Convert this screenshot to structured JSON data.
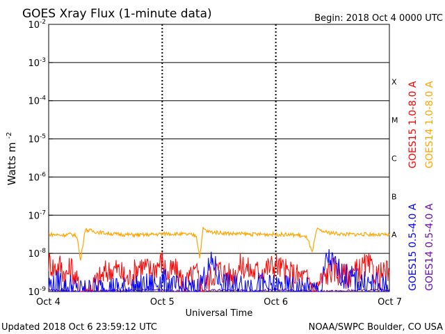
{
  "header": {
    "title": "GOES Xray Flux (1-minute data)",
    "begin_label": "Begin:  2018 Oct 4 0000 UTC"
  },
  "footer": {
    "updated": "Updated 2018 Oct  6 23:59:12 UTC",
    "source": "NOAA/SWPC Boulder, CO USA"
  },
  "chart_data": {
    "type": "line",
    "xlabel": "Universal Time",
    "ylabel_main": "Watts m",
    "ylabel_exp": "-2",
    "x_ticks": [
      "Oct 4",
      "Oct 5",
      "Oct 6",
      "Oct 7"
    ],
    "y_scale": "log",
    "ylim_exponents": [
      -9,
      -2
    ],
    "y_tick_exponents": [
      "-2",
      "-3",
      "-4",
      "-5",
      "-6",
      "-7",
      "-8",
      "-9"
    ],
    "y_tick_base": "10",
    "flare_classes": [
      {
        "label": "X",
        "exponent": -4
      },
      {
        "label": "M",
        "exponent": -5
      },
      {
        "label": "C",
        "exponent": -6
      },
      {
        "label": "B",
        "exponent": -7
      },
      {
        "label": "A",
        "exponent": -8
      }
    ],
    "legend": [
      {
        "name": "GOES15 1.0-8.0 A",
        "color": "#ff0000"
      },
      {
        "name": "GOES14 1.0-8.0 A",
        "color": "#ffa500"
      },
      {
        "name": "GOES15 0.5-4.0 A",
        "color": "#0000ff"
      },
      {
        "name": "GOES14 0.5-4.0 A",
        "color": "#6a0dad"
      }
    ],
    "series": [
      {
        "name": "GOES14 1.0-8.0 A",
        "color": "#ffa500",
        "x_days": [
          0.0,
          0.1,
          0.2,
          0.25,
          0.28,
          0.32,
          0.45,
          0.6,
          0.8,
          0.95,
          1.05,
          1.2,
          1.3,
          1.33,
          1.36,
          1.4,
          1.6,
          1.8,
          2.0,
          2.2,
          2.28,
          2.32,
          2.36,
          2.45,
          2.6,
          2.8,
          3.0
        ],
        "log_values": [
          -7.5,
          -7.52,
          -7.5,
          -7.55,
          -8.2,
          -7.38,
          -7.45,
          -7.5,
          -7.52,
          -7.5,
          -7.48,
          -7.5,
          -7.53,
          -8.1,
          -7.35,
          -7.43,
          -7.48,
          -7.5,
          -7.5,
          -7.52,
          -7.6,
          -8.0,
          -7.38,
          -7.45,
          -7.5,
          -7.5,
          -7.52
        ]
      },
      {
        "name": "GOES15 1.0-8.0 A",
        "color": "#ff0000",
        "x_days": [
          0.0,
          0.05,
          0.1,
          0.15,
          0.2,
          0.24,
          0.28,
          0.34,
          0.4,
          0.5,
          0.6,
          0.7,
          0.8,
          0.9,
          1.0,
          1.05,
          1.1,
          1.2,
          1.3,
          1.36,
          1.4,
          1.5,
          1.6,
          1.7,
          1.8,
          1.9,
          2.0,
          2.1,
          2.2,
          2.3,
          2.34,
          2.4,
          2.5,
          2.6,
          2.7,
          2.8,
          2.9,
          3.0
        ],
        "log_values": [
          -8.2,
          -8.4,
          -8.3,
          -8.6,
          -8.35,
          -8.7,
          -9.0,
          -9.0,
          -8.8,
          -8.5,
          -8.4,
          -8.7,
          -8.3,
          -8.45,
          -8.2,
          -8.6,
          -8.4,
          -8.8,
          -8.5,
          -9.0,
          -8.7,
          -8.4,
          -8.6,
          -8.3,
          -8.5,
          -8.4,
          -8.3,
          -8.5,
          -8.6,
          -8.7,
          -9.0,
          -8.7,
          -8.4,
          -8.6,
          -8.5,
          -8.3,
          -8.6,
          -8.5
        ]
      },
      {
        "name": "GOES14 0.5-4.0 A",
        "color": "#6a0dad",
        "x_days": [
          0.0,
          0.3,
          0.6,
          0.9,
          1.2,
          1.5,
          1.8,
          2.1,
          2.4,
          2.7,
          3.0
        ],
        "log_values": [
          -8.95,
          -9.0,
          -8.97,
          -8.95,
          -9.0,
          -8.96,
          -8.98,
          -8.95,
          -9.0,
          -8.97,
          -8.96
        ]
      },
      {
        "name": "GOES15 0.5-4.0 A",
        "color": "#0000ff",
        "x_days": [
          0.0,
          0.05,
          0.1,
          0.15,
          0.2,
          0.25,
          0.3,
          0.5,
          0.7,
          0.9,
          1.0,
          1.1,
          1.3,
          1.45,
          1.5,
          1.6,
          1.8,
          2.0,
          2.2,
          2.4,
          2.45,
          2.6,
          2.8,
          3.0
        ],
        "log_values": [
          -8.8,
          -8.9,
          -8.7,
          -8.95,
          -8.85,
          -9.0,
          -9.0,
          -8.9,
          -8.95,
          -8.85,
          -8.7,
          -8.9,
          -9.0,
          -8.2,
          -8.7,
          -8.9,
          -8.8,
          -8.9,
          -8.95,
          -9.0,
          -8.1,
          -8.6,
          -8.8,
          -8.9
        ]
      }
    ]
  }
}
